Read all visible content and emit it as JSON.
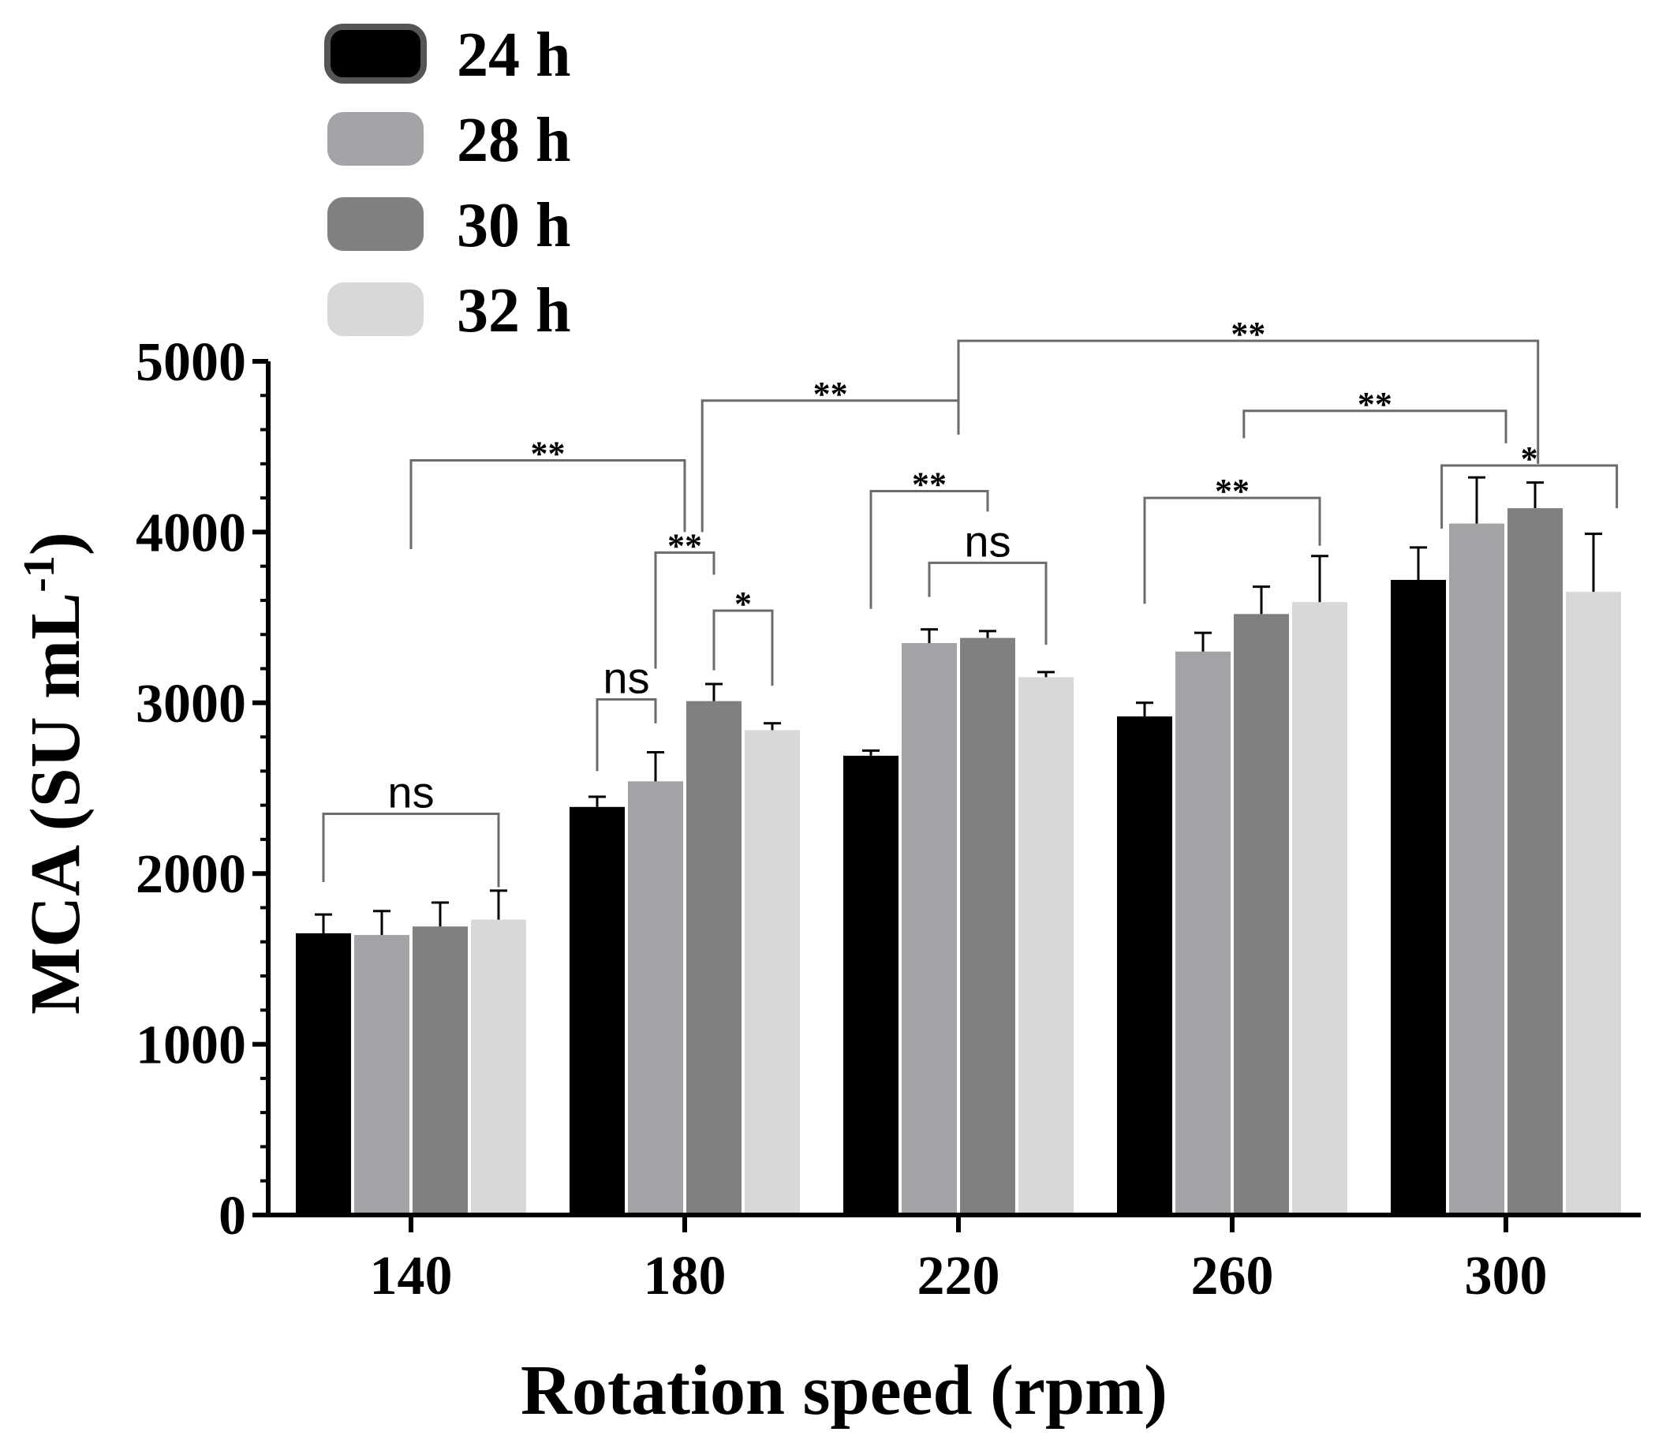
{
  "chart_data": {
    "type": "bar",
    "title": "",
    "xlabel": "Rotation speed (rpm)",
    "ylabel_main": "MCA (SU mL",
    "ylabel_sup": "-1",
    "ylabel_close": ")",
    "ylim": [
      0,
      5000
    ],
    "yticks": [
      "0",
      "1000",
      "2000",
      "3000",
      "4000",
      "5000"
    ],
    "yminor_step": 200,
    "categories": [
      "140",
      "180",
      "220",
      "260",
      "300"
    ],
    "legend_position": "top-left",
    "series": [
      {
        "name": "24 h",
        "color": "#000000",
        "values": [
          1650,
          2390,
          2690,
          2920,
          3720
        ],
        "errors": [
          110,
          60,
          30,
          80,
          190
        ]
      },
      {
        "name": "28 h",
        "color": "#a2a3a6",
        "values": [
          1640,
          2540,
          3350,
          3300,
          4050
        ],
        "errors": [
          140,
          170,
          80,
          110,
          270
        ]
      },
      {
        "name": "30 h",
        "color": "#808080",
        "values": [
          1690,
          3010,
          3380,
          3520,
          4140
        ],
        "errors": [
          140,
          100,
          40,
          160,
          150
        ]
      },
      {
        "name": "32 h",
        "color": "#d8d8d8",
        "values": [
          1730,
          2840,
          3150,
          3590,
          3650
        ],
        "errors": [
          170,
          40,
          30,
          270,
          340
        ]
      }
    ],
    "annotations": [
      {
        "label": "ns",
        "style": "ns",
        "from": [
          0,
          0
        ],
        "to": [
          0,
          3
        ],
        "y_bracket": 2350,
        "left_tip": 1950,
        "right_tip": 1920
      },
      {
        "label": "**",
        "style": "star",
        "from": [
          0,
          1.5
        ],
        "to": [
          1,
          1.5
        ],
        "y_bracket": 4420,
        "left_tip": 3900,
        "right_tip": 4000
      },
      {
        "label": "ns",
        "style": "ns",
        "from": [
          1,
          0
        ],
        "to": [
          1,
          1
        ],
        "y_bracket": 3020,
        "left_tip": 2600,
        "right_tip": 2880
      },
      {
        "label": "**",
        "style": "star",
        "from": [
          1,
          1
        ],
        "to": [
          1,
          2
        ],
        "y_bracket": 3880,
        "left_tip": 3200,
        "right_tip": 3750
      },
      {
        "label": "*",
        "style": "star",
        "from": [
          1,
          2
        ],
        "to": [
          1,
          3
        ],
        "y_bracket": 3540,
        "left_tip": 3190,
        "right_tip": 3100
      },
      {
        "label": "**",
        "style": "star",
        "from": [
          1,
          1.8
        ],
        "to": [
          2,
          1.5
        ],
        "y_bracket": 4770,
        "left_tip": 4000,
        "right_tip": 4570
      },
      {
        "label": "**",
        "style": "star",
        "from": [
          2,
          0
        ],
        "to": [
          2,
          2
        ],
        "y_bracket": 4240,
        "left_tip": 3550,
        "right_tip": 4120
      },
      {
        "label": "ns",
        "style": "ns",
        "from": [
          2,
          1
        ],
        "to": [
          2,
          3
        ],
        "y_bracket": 3820,
        "left_tip": 3620,
        "right_tip": 3340
      },
      {
        "label": "**",
        "style": "star",
        "from": [
          2,
          1.5
        ],
        "to": [
          4,
          2.05
        ],
        "y_bracket": 5120,
        "left_tip": 4570,
        "right_tip": 4400
      },
      {
        "label": "**",
        "style": "star",
        "from": [
          3,
          0
        ],
        "to": [
          3,
          3
        ],
        "y_bracket": 4200,
        "left_tip": 3580,
        "right_tip": 3920
      },
      {
        "label": "**",
        "style": "star",
        "from": [
          3,
          1.7
        ],
        "to": [
          4,
          1.5
        ],
        "y_bracket": 4710,
        "left_tip": 4550,
        "right_tip": 4520
      },
      {
        "label": "*",
        "style": "star",
        "from": [
          4,
          0.4
        ],
        "to": [
          4,
          3.4
        ],
        "y_bracket": 4390,
        "left_tip": 4020,
        "right_tip": 4140
      }
    ]
  }
}
